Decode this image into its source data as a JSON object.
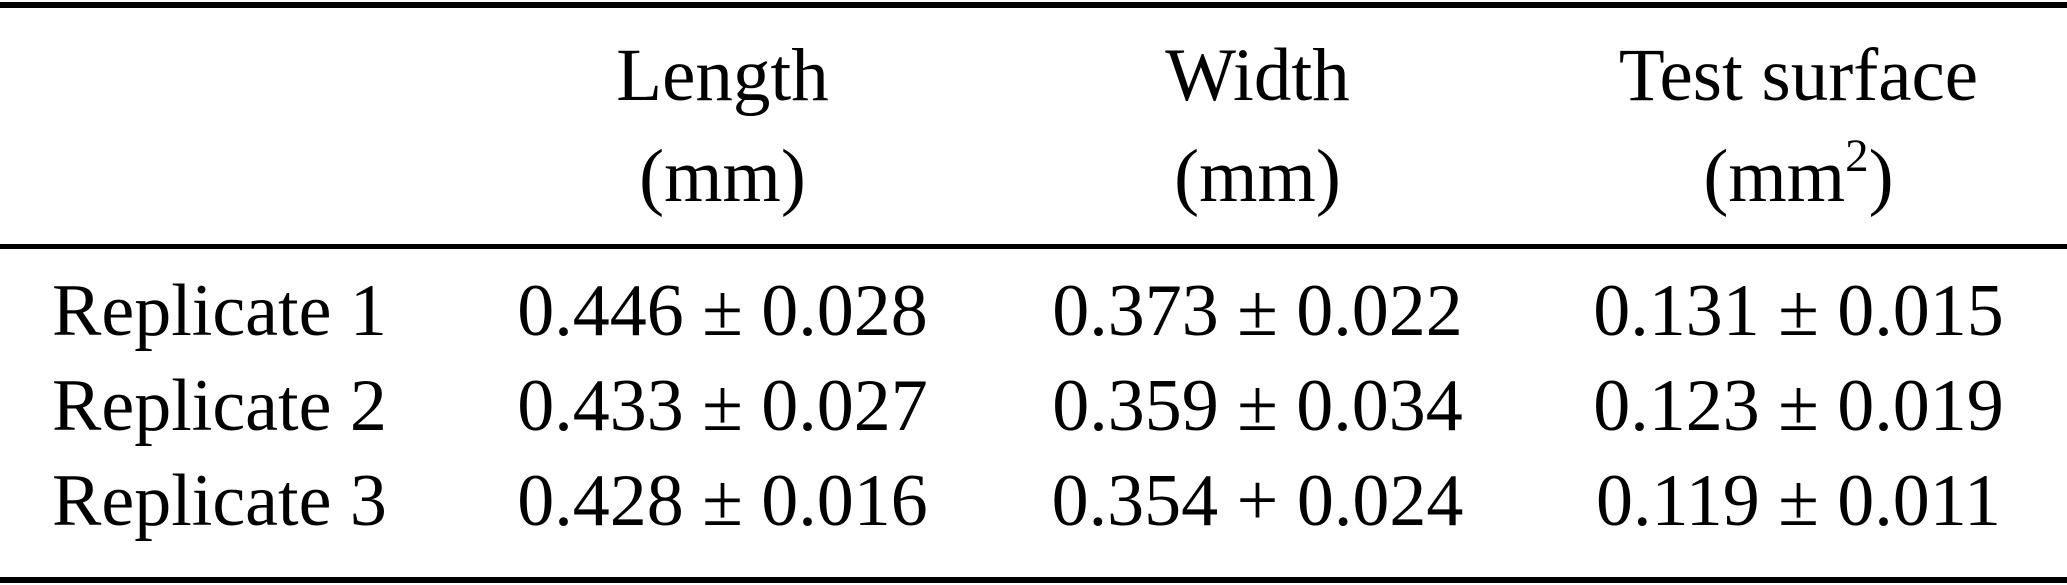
{
  "colors": {
    "text": "#000000",
    "background": "#ffffff",
    "rule": "#000000"
  },
  "table": {
    "columns": [
      {
        "label": ""
      },
      {
        "label": "Length",
        "unit": "(mm)"
      },
      {
        "label": "Width",
        "unit": "(mm)"
      },
      {
        "label": "Test surface",
        "unit_pre": "(mm",
        "unit_sup": "2",
        "unit_post": ")"
      }
    ],
    "rows": [
      {
        "label": "Replicate 1",
        "length": "0.446 ± 0.028",
        "width": "0.373 ± 0.022",
        "test_surface": "0.131 ± 0.015"
      },
      {
        "label": "Replicate 2",
        "length": "0.433 ± 0.027",
        "width": "0.359 ± 0.034",
        "test_surface": "0.123 ± 0.019"
      },
      {
        "label": "Replicate 3",
        "length": "0.428 ± 0.016",
        "width": "0.354 + 0.024",
        "test_surface": "0.119 ± 0.011"
      }
    ]
  }
}
